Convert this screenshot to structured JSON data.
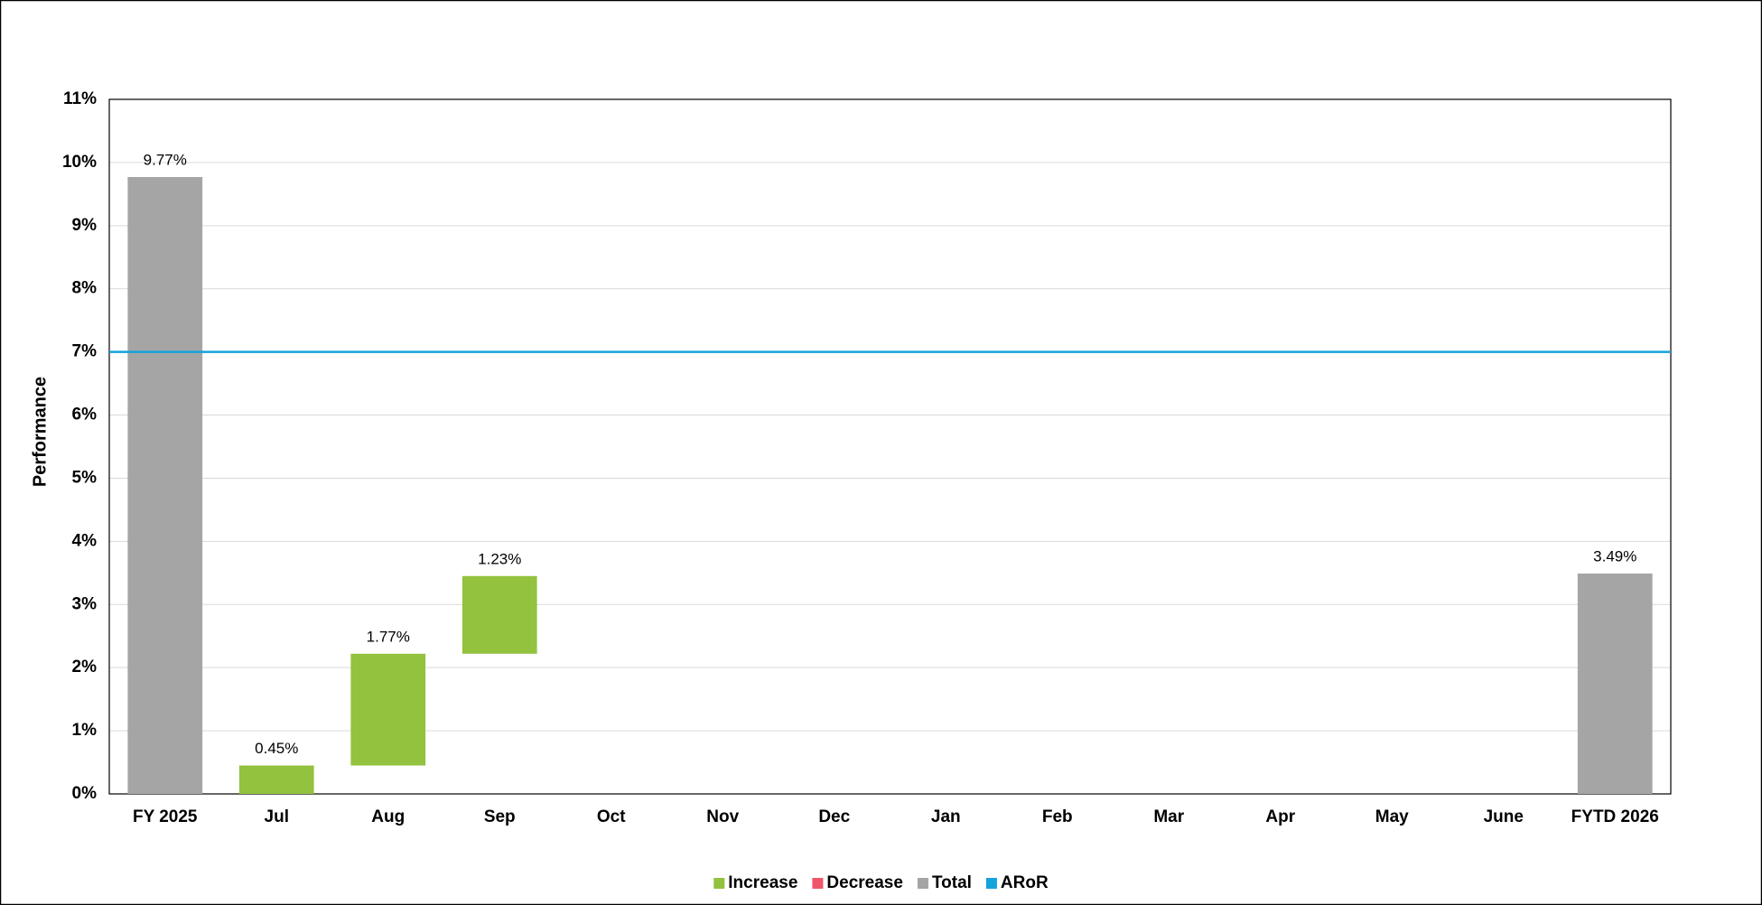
{
  "chart_data": {
    "type": "waterfall",
    "y_label": "Performance",
    "categories": [
      "FY 2025",
      "Jul",
      "Aug",
      "Sep",
      "Oct",
      "Nov",
      "Dec",
      "Jan",
      "Feb",
      "Mar",
      "Apr",
      "May",
      "June",
      "FYTD 2026"
    ],
    "series": [
      {
        "name": "Increase",
        "role": "increase",
        "color": "#92c23e",
        "values": [
          null,
          0.45,
          1.77,
          1.23,
          null,
          null,
          null,
          null,
          null,
          null,
          null,
          null,
          null,
          null
        ],
        "value_labels": [
          null,
          "0.45%",
          "1.77%",
          "1.23%",
          null,
          null,
          null,
          null,
          null,
          null,
          null,
          null,
          null,
          null
        ]
      },
      {
        "name": "Decrease",
        "role": "decrease",
        "color": "#f0566a",
        "values": [
          null,
          null,
          null,
          null,
          null,
          null,
          null,
          null,
          null,
          null,
          null,
          null,
          null,
          null
        ],
        "value_labels": [
          null,
          null,
          null,
          null,
          null,
          null,
          null,
          null,
          null,
          null,
          null,
          null,
          null,
          null
        ]
      },
      {
        "name": "Total",
        "role": "total",
        "color": "#a5a5a5",
        "values": [
          9.77,
          null,
          null,
          null,
          null,
          null,
          null,
          null,
          null,
          null,
          null,
          null,
          null,
          3.49
        ],
        "value_labels": [
          "9.77%",
          null,
          null,
          null,
          null,
          null,
          null,
          null,
          null,
          null,
          null,
          null,
          null,
          "3.49%"
        ]
      }
    ],
    "reference_line": {
      "name": "ARoR",
      "color": "#15a3dc",
      "value": 7
    },
    "ylim": [
      0,
      11
    ],
    "yticks": [
      {
        "value": 0,
        "label": "0%"
      },
      {
        "value": 1,
        "label": "1%"
      },
      {
        "value": 2,
        "label": "2%"
      },
      {
        "value": 3,
        "label": "3%"
      },
      {
        "value": 4,
        "label": "4%"
      },
      {
        "value": 5,
        "label": "5%"
      },
      {
        "value": 6,
        "label": "6%"
      },
      {
        "value": 7,
        "label": "7%"
      },
      {
        "value": 8,
        "label": "8%"
      },
      {
        "value": 9,
        "label": "9%"
      },
      {
        "value": 10,
        "label": "10%"
      },
      {
        "value": 11,
        "label": "11%"
      }
    ],
    "grid": true,
    "legend": "bottom"
  }
}
